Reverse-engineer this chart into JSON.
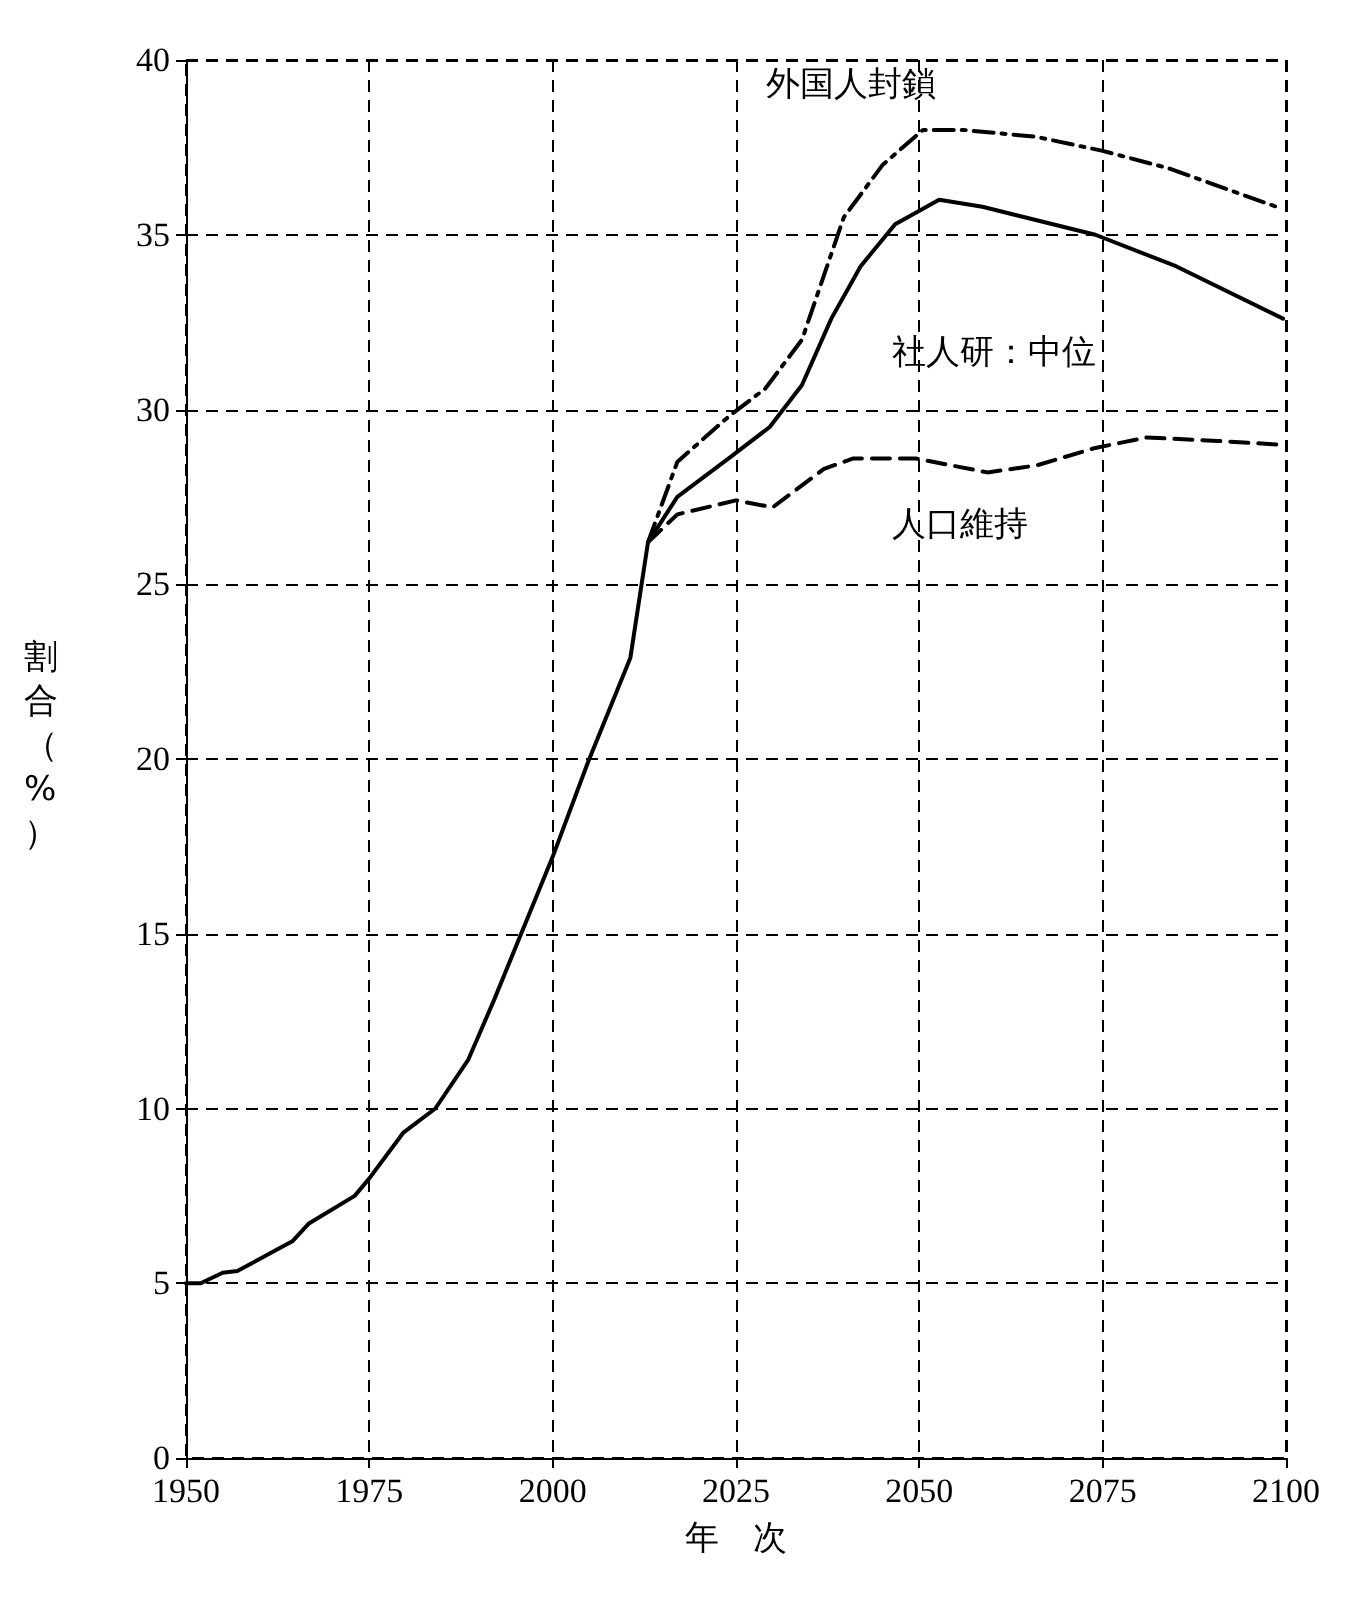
{
  "chart_data": {
    "type": "line",
    "xlabel": "年　次",
    "ylabel": "割合（%）",
    "xlim": [
      1950,
      2100
    ],
    "xticks": [
      1950,
      1975,
      2000,
      2025,
      2050,
      2075,
      2100
    ],
    "ylim": [
      0,
      40
    ],
    "yticks": [
      0,
      5,
      10,
      15,
      20,
      25,
      30,
      35,
      40
    ],
    "grid": true,
    "series": [
      {
        "color": "#000000",
        "line_style": "solid",
        "x": [
          1950,
          1952,
          1955,
          1957,
          1964.5,
          1966.7,
          1973,
          1975,
          1979.6,
          1984,
          1988.5,
          1992,
          1995.7,
          2000,
          2004.8,
          2010.6,
          2013,
          2017,
          2024,
          2029.6,
          2034,
          2038,
          2042,
          2046.7,
          2052.7,
          2058.6,
          2074,
          2085,
          2099.6
        ],
        "values": [
          5.0,
          5.0,
          5.3,
          5.35,
          6.2,
          6.7,
          7.5,
          8.0,
          9.3,
          10.0,
          11.4,
          13.1,
          15.0,
          17.2,
          19.9,
          22.9,
          26.2,
          27.5,
          28.6,
          29.5,
          30.7,
          32.6,
          34.1,
          35.3,
          36.0,
          35.8,
          35.0,
          34.1,
          32.6
        ]
      },
      {
        "color": "#000000",
        "line_style": "dashdot",
        "x": [
          2013,
          2017,
          2024,
          2029,
          2034,
          2039.7,
          2045,
          2050.5,
          2056,
          2066,
          2075,
          2084,
          2098.7
        ],
        "values": [
          26.2,
          28.5,
          29.8,
          30.6,
          32.0,
          35.5,
          37.0,
          38.0,
          38.0,
          37.8,
          37.4,
          36.9,
          35.8
        ]
      },
      {
        "color": "#000000",
        "line_style": "dashed",
        "x": [
          2013,
          2017,
          2025,
          2030,
          2037,
          2041,
          2049.5,
          2059.3,
          2066,
          2074,
          2081,
          2090.7,
          2098.7
        ],
        "values": [
          26.2,
          27.0,
          27.4,
          27.2,
          28.3,
          28.6,
          28.6,
          28.2,
          28.4,
          28.9,
          29.2,
          29.1,
          29.0
        ]
      }
    ],
    "annotations": [
      "外国人封鎖",
      "社人研：中位",
      "人口維持"
    ]
  }
}
